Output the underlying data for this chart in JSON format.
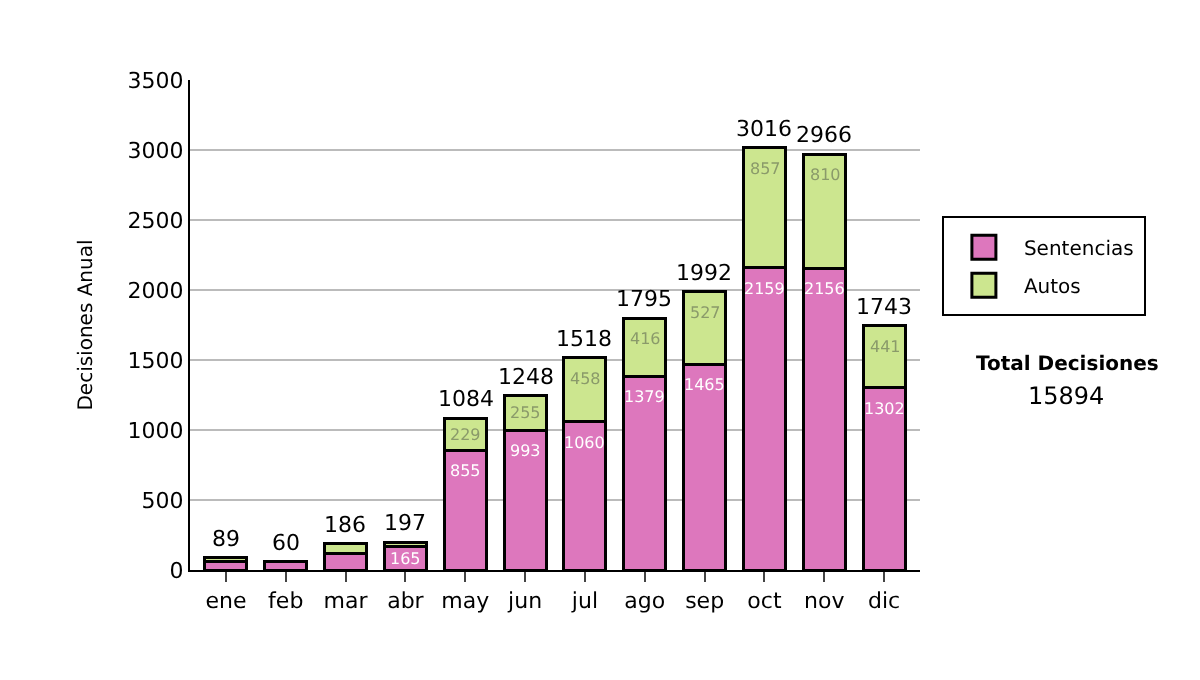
{
  "chart_data": {
    "type": "bar",
    "stacked": true,
    "ylabel": "Decisiones Anual",
    "categories": [
      "ene",
      "feb",
      "mar",
      "abr",
      "may",
      "jun",
      "jul",
      "ago",
      "sep",
      "oct",
      "nov",
      "dic"
    ],
    "series": [
      {
        "name": "Sentencias",
        "color": "#dd77bd",
        "values": [
          60,
          60,
          120,
          165,
          855,
          993,
          1060,
          1379,
          1465,
          2159,
          2156,
          1302
        ],
        "value_labels": [
          null,
          null,
          null,
          "165",
          "855",
          "993",
          "1060",
          "1379",
          "1465",
          "2159",
          "2156",
          "1302"
        ]
      },
      {
        "name": "Autos",
        "color": "#cce68f",
        "values": [
          29,
          null,
          66,
          32,
          229,
          255,
          458,
          416,
          527,
          857,
          810,
          441
        ],
        "value_labels": [
          null,
          null,
          null,
          null,
          "229",
          "255",
          "458",
          "416",
          "527",
          "857",
          "810",
          "441"
        ]
      }
    ],
    "totals": [
      "89",
      "60",
      "186",
      "197",
      "1084",
      "1248",
      "1518",
      "1795",
      "1992",
      "3016",
      "2966",
      "1743"
    ],
    "ylim": [
      0,
      3500
    ],
    "yticks": [
      0,
      500,
      1000,
      1500,
      2000,
      2500,
      3000,
      3500
    ],
    "grid": "y",
    "legend": "right",
    "annotations": [
      "Total Decisiones",
      "15894"
    ]
  }
}
